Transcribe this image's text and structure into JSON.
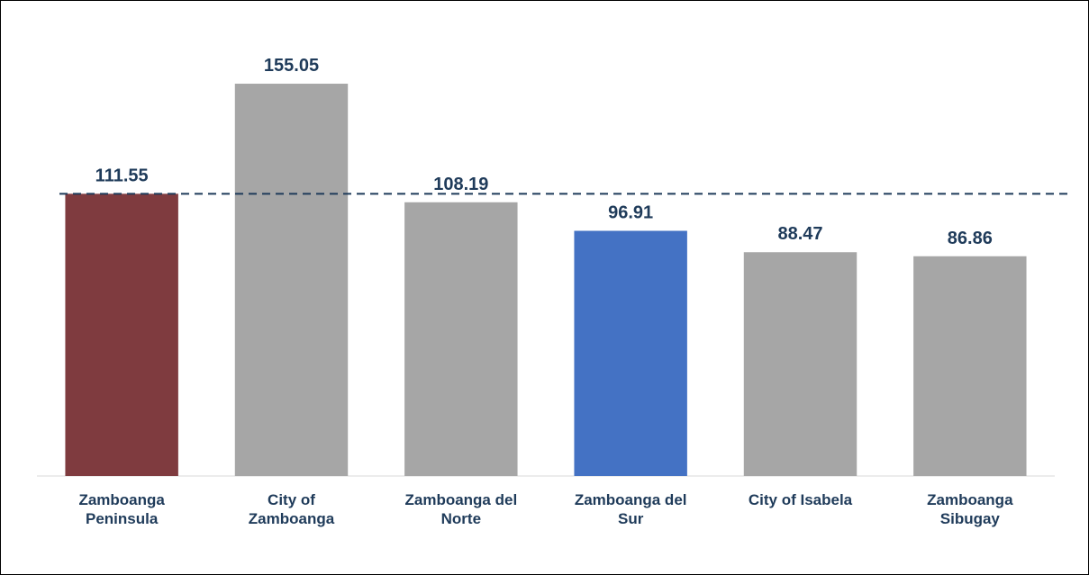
{
  "chart_data": {
    "type": "bar",
    "categories": [
      "Zamboanga Peninsula",
      "City of Zamboanga",
      "Zamboanga del Norte",
      "Zamboanga del Sur",
      "City of Isabela",
      "Zamboanga Sibugay"
    ],
    "values": [
      111.55,
      155.05,
      108.19,
      96.91,
      88.47,
      86.86
    ],
    "colors": [
      "#7f3b3f",
      "#a6a6a6",
      "#a6a6a6",
      "#4472c4",
      "#a6a6a6",
      "#a6a6a6"
    ],
    "ylim": [
      0,
      170
    ]
  }
}
